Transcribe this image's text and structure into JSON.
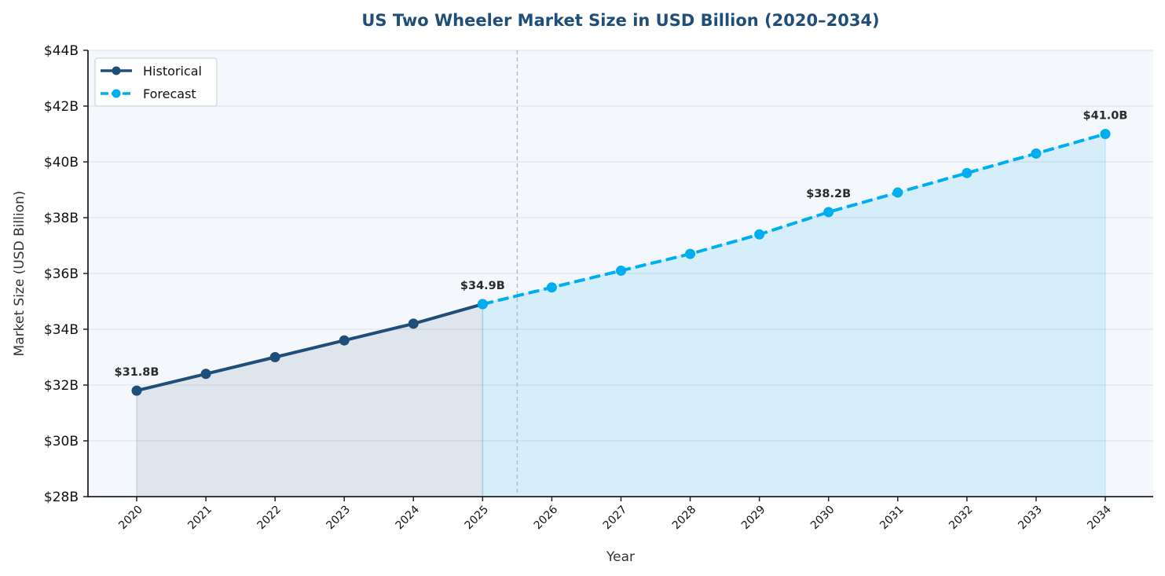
{
  "chart_data": {
    "type": "line",
    "title": "US Two Wheeler Market Size in USD Billion (2020–2034)",
    "xlabel": "Year",
    "ylabel": "Market Size (USD Billion)",
    "ylim": [
      28,
      44
    ],
    "yticks": [
      28,
      30,
      32,
      34,
      36,
      38,
      40,
      42,
      44
    ],
    "ytick_labels": [
      "$28B",
      "$30B",
      "$32B",
      "$34B",
      "$36B",
      "$38B",
      "$40B",
      "$42B",
      "$44B"
    ],
    "categories": [
      "2020",
      "2021",
      "2022",
      "2023",
      "2024",
      "2025",
      "2026",
      "2027",
      "2028",
      "2029",
      "2030",
      "2031",
      "2032",
      "2033",
      "2034"
    ],
    "grid": "horizontal",
    "legend_position": "top-left",
    "divider_at_year": 2025.5,
    "series": [
      {
        "name": "Historical",
        "style": "solid",
        "color": "#1f4e79",
        "fill_color": "#1f4e79",
        "x": [
          2020,
          2021,
          2022,
          2023,
          2024,
          2025
        ],
        "values": [
          31.8,
          32.4,
          33.0,
          33.6,
          34.2,
          34.9
        ]
      },
      {
        "name": "Forecast",
        "style": "dashed",
        "color": "#00aeef",
        "fill_color": "#00aeef",
        "x": [
          2025,
          2026,
          2027,
          2028,
          2029,
          2030,
          2031,
          2032,
          2033,
          2034
        ],
        "values": [
          34.9,
          35.5,
          36.1,
          36.7,
          37.4,
          38.2,
          38.9,
          39.6,
          40.3,
          41.0
        ]
      }
    ],
    "annotations": [
      {
        "x": 2020,
        "y": 31.8,
        "text": "$31.8B"
      },
      {
        "x": 2025,
        "y": 34.9,
        "text": "$34.9B"
      },
      {
        "x": 2030,
        "y": 38.2,
        "text": "$38.2B"
      },
      {
        "x": 2034,
        "y": 41.0,
        "text": "$41.0B"
      }
    ],
    "colors": {
      "plot_background": "#f4f7fb",
      "grid": "#dcdfe4",
      "divider": "#b8bcc2",
      "title": "#1f4e79"
    }
  }
}
